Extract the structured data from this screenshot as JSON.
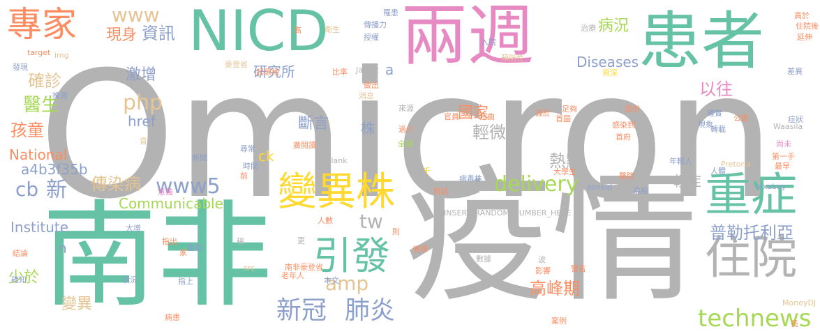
{
  "words": [
    {
      "text": "Omicron",
      "color": "#b3b3b3"
    },
    {
      "text": "南非",
      "color": "#66c2a5"
    },
    {
      "text": "疫情",
      "color": "#b3b3b3"
    },
    {
      "text": "兩週",
      "color": "#e78ac3"
    },
    {
      "text": "患者",
      "color": "#66c2a5"
    },
    {
      "text": "NICD",
      "color": "#66c2a5"
    },
    {
      "text": "專家",
      "color": "#fc8d62"
    },
    {
      "text": "變異株",
      "color": "#ffd92f"
    },
    {
      "text": "重症",
      "color": "#66c2a5"
    },
    {
      "text": "住院",
      "color": "#b3b3b3"
    },
    {
      "text": "引發",
      "color": "#66c2a5"
    },
    {
      "text": "新冠",
      "color": "#8da0cb"
    },
    {
      "text": "肺炎",
      "color": "#8da0cb"
    },
    {
      "text": "technews",
      "color": "#a6d854"
    },
    {
      "text": "delivery",
      "color": "#a6d854"
    },
    {
      "text": "www5",
      "color": "#8da0cb"
    },
    {
      "text": "amp",
      "color": "#e5c494"
    },
    {
      "text": "php",
      "color": "#e5c494"
    },
    {
      "text": "www",
      "color": "#e5c494"
    },
    {
      "text": "現身",
      "color": "#fc8d62"
    },
    {
      "text": "資訊",
      "color": "#8da0cb"
    },
    {
      "text": "病況",
      "color": "#a6d854"
    },
    {
      "text": "確診",
      "color": "#e5c494"
    },
    {
      "text": "激增",
      "color": "#8da0cb"
    },
    {
      "text": "研究所",
      "color": "#8da0cb"
    },
    {
      "text": "Diseases",
      "color": "#8da0cb"
    },
    {
      "text": "以往",
      "color": "#e78ac3"
    },
    {
      "text": "醫生",
      "color": "#a6d854"
    },
    {
      "text": "孩童",
      "color": "#fc8d62"
    },
    {
      "text": "國家",
      "color": "#fc8d62"
    },
    {
      "text": "輕微",
      "color": "#b3b3b3"
    },
    {
      "text": "斷言",
      "color": "#8da0cb"
    },
    {
      "text": "株",
      "color": "#8da0cb"
    },
    {
      "text": "href",
      "color": "#8da0cb"
    },
    {
      "text": "National",
      "color": "#fc8d62"
    },
    {
      "text": "a4b3f35b",
      "color": "#8da0cb"
    },
    {
      "text": "ck",
      "color": "#ffd92f"
    },
    {
      "text": "熱點",
      "color": "#b3b3b3"
    },
    {
      "text": "cb",
      "color": "#8da0cb"
    },
    {
      "text": "新",
      "color": "#8da0cb"
    },
    {
      "text": "傳染病",
      "color": "#e5c494"
    },
    {
      "text": "Communicable",
      "color": "#a6d854"
    },
    {
      "text": "tw",
      "color": "#b3b3b3"
    },
    {
      "text": "輕症",
      "color": "#b3b3b3"
    },
    {
      "text": "Institute",
      "color": "#8da0cb"
    },
    {
      "text": "n",
      "color": "#8da0cb"
    },
    {
      "text": "普勒托利亞",
      "color": "#8da0cb"
    },
    {
      "text": "少於",
      "color": "#a6d854"
    },
    {
      "text": "高峰期",
      "color": "#fc8d62"
    },
    {
      "text": "變異",
      "color": "#e5c494"
    },
    {
      "text": "a",
      "color": "#8da0cb"
    },
    {
      "text": "比率",
      "color": "#fc8d62"
    },
    {
      "text": "Jassat",
      "color": "#b3b3b3"
    },
    {
      "text": "起源地",
      "color": "#fc8d62"
    },
    {
      "text": "豪登省",
      "color": "#e5c494"
    },
    {
      "text": "預防性",
      "color": "#e5c494"
    },
    {
      "text": "入院",
      "color": "#8da0cb"
    },
    {
      "text": "治療",
      "color": "#b3b3b3"
    },
    {
      "text": "傳播力",
      "color": "#8da0cb"
    },
    {
      "text": "授權",
      "color": "#8da0cb"
    },
    {
      "text": "罹患",
      "color": "#8da0cb"
    },
    {
      "text": "高",
      "color": "#fc8d62"
    },
    {
      "text": "衛生",
      "color": "#e5c494"
    },
    {
      "text": "高於",
      "color": "#fc8d62"
    },
    {
      "text": "住院後",
      "color": "#fc8d62"
    },
    {
      "text": "延伸",
      "color": "#fc8d62"
    },
    {
      "text": "target",
      "color": "#fc8d62"
    },
    {
      "text": "img",
      "color": "#e5c494"
    },
    {
      "text": "發現",
      "color": "#8da0cb"
    },
    {
      "text": "推測",
      "color": "#8da0cb"
    },
    {
      "text": "做出",
      "color": "#fc8d62"
    },
    {
      "text": "消息",
      "color": "#e5c494"
    },
    {
      "text": "差異",
      "color": "#8da0cb"
    },
    {
      "text": "資深",
      "color": "#ffd92f"
    },
    {
      "text": "官員",
      "color": "#fc8d62"
    },
    {
      "text": "扭曲",
      "color": "#fc8d62"
    },
    {
      "text": "源於",
      "color": "#fc8d62"
    },
    {
      "text": "足夠",
      "color": "#fc8d62"
    },
    {
      "text": "首圖",
      "color": "#fc8d62"
    },
    {
      "text": "提供",
      "color": "#fc8d62"
    },
    {
      "text": "確實",
      "color": "#8da0cb"
    },
    {
      "text": "公衛",
      "color": "#fc8d62"
    },
    {
      "text": "症狀",
      "color": "#8da0cb"
    },
    {
      "text": "現象",
      "color": "#8da0cb"
    },
    {
      "text": "轉載",
      "color": "#8da0cb"
    },
    {
      "text": "感染到",
      "color": "#fc8d62"
    },
    {
      "text": "首府",
      "color": "#fc8d62"
    },
    {
      "text": "Waasila",
      "color": "#b3b3b3"
    },
    {
      "text": "來源",
      "color": "#b3b3b3"
    },
    {
      "text": "過少",
      "color": "#fc8d62"
    },
    {
      "text": "全球",
      "color": "#a6d854"
    },
    {
      "text": "廣閱讀",
      "color": "#fc8d62"
    },
    {
      "text": "尚未",
      "color": "#e78ac3"
    },
    {
      "text": "年輕人",
      "color": "#8da0cb"
    },
    {
      "text": "第一手",
      "color": "#fc8d62"
    },
    {
      "text": "最早",
      "color": "#fc8d62"
    },
    {
      "text": "尋常",
      "color": "#8da0cb"
    },
    {
      "text": "_blank",
      "color": "#b3b3b3"
    },
    {
      "text": "新聞",
      "color": "#8da0cb"
    },
    {
      "text": "時間",
      "color": "#8da0cb"
    },
    {
      "text": "前",
      "color": "#fc8d62"
    },
    {
      "text": "千",
      "color": "#ffd92f"
    },
    {
      "text": "大學生",
      "color": "#fc8d62"
    },
    {
      "text": "病毒株",
      "color": "#8da0cb"
    },
    {
      "text": "Pretoria",
      "color": "#e5c494"
    },
    {
      "text": "pixabay",
      "color": "#8da0cb"
    },
    {
      "text": "人體",
      "color": "#8da0cb"
    },
    {
      "text": "醫院",
      "color": "#fc8d62"
    },
    {
      "text": "zoneid",
      "color": "#8da0cb"
    },
    {
      "text": "avw",
      "color": "#b3b3b3"
    },
    {
      "text": "染疫",
      "color": "#8da0cb"
    },
    {
      "text": "對話",
      "color": "#fc8d62"
    },
    {
      "text": "INSERT_RANDOM_NUMBER_HERE",
      "color": "#b3b3b3"
    },
    {
      "text": "意義",
      "color": "#e78ac3"
    },
    {
      "text": "大增",
      "color": "#8da0cb"
    },
    {
      "text": "人數",
      "color": "#fc8d62"
    },
    {
      "text": "更",
      "color": "#b3b3b3"
    },
    {
      "text": "稱",
      "color": "#b3b3b3"
    },
    {
      "text": "指出",
      "color": "#fc8d62"
    },
    {
      "text": "結論",
      "color": "#fc8d62"
    },
    {
      "text": "重讀",
      "color": "#8da0cb"
    },
    {
      "text": "家",
      "color": "#fc8d62"
    },
    {
      "text": "則",
      "color": "#fc8d62"
    },
    {
      "text": "值得",
      "color": "#fc8d62"
    },
    {
      "text": "數據",
      "color": "#b3b3b3"
    },
    {
      "text": "波",
      "color": "#b3b3b3"
    },
    {
      "text": "影響",
      "color": "#fc8d62"
    },
    {
      "text": "警告",
      "color": "#fc8d62"
    },
    {
      "text": "src",
      "color": "#e5c494"
    },
    {
      "text": "南非豪登省",
      "color": "#fc8d62"
    },
    {
      "text": "老年人",
      "color": "#fc8d62"
    },
    {
      "text": "本文",
      "color": "#8da0cb"
    },
    {
      "text": "確知",
      "color": "#8da0cb"
    },
    {
      "text": "狀況",
      "color": "#8da0cb"
    },
    {
      "text": "指上",
      "color": "#8da0cb"
    },
    {
      "text": "病患",
      "color": "#fc8d62"
    },
    {
      "text": "案例",
      "color": "#fc8d62"
    },
    {
      "text": "MoneyDJ",
      "color": "#e5c494"
    },
    {
      "text": "長",
      "color": "#fc8d62"
    },
    {
      "text": "音",
      "color": "#e5c494"
    }
  ]
}
